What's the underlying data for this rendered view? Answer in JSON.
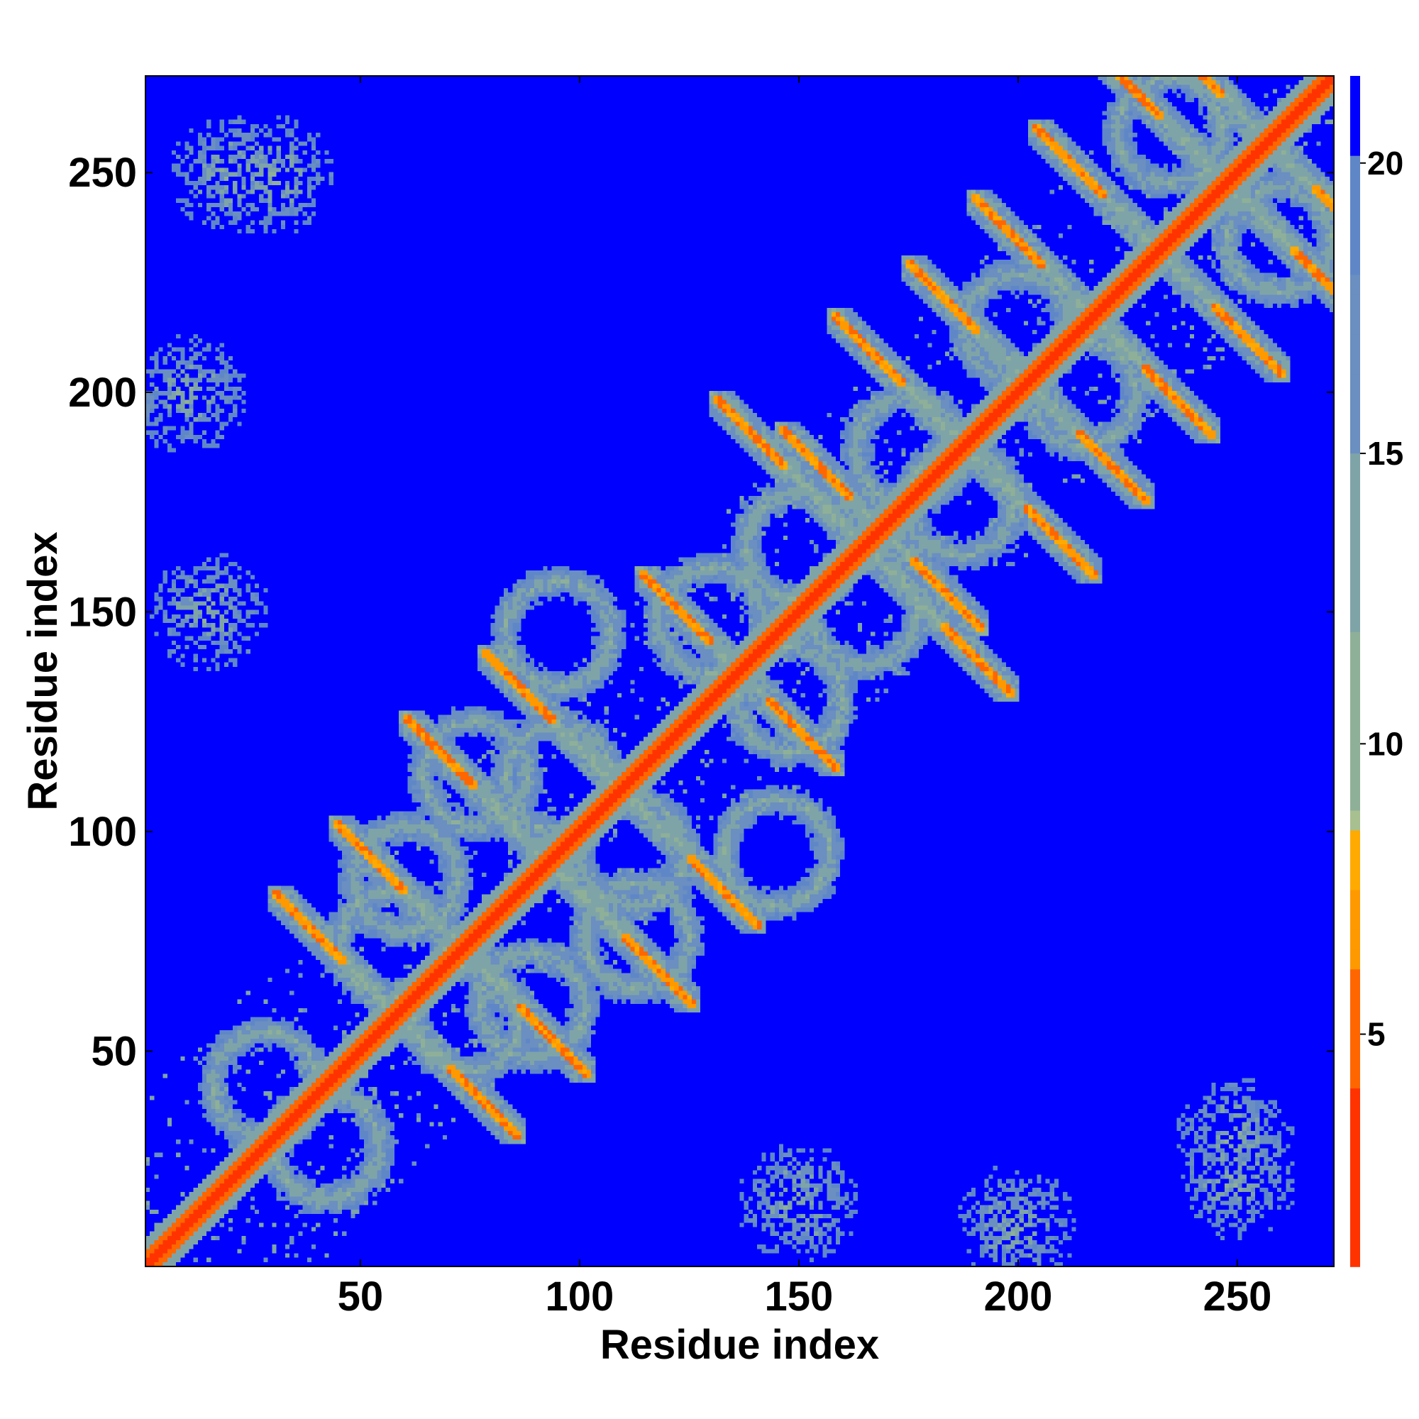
{
  "chart_data": {
    "type": "heatmap",
    "title": "",
    "xlabel": "Residue index",
    "ylabel": "Residue index",
    "xlim": [
      1,
      272
    ],
    "ylim": [
      1,
      272
    ],
    "x_ticks": [
      50,
      100,
      150,
      200,
      250
    ],
    "y_ticks": [
      50,
      100,
      150,
      200,
      250
    ],
    "colorbar": {
      "range": [
        1,
        21.5
      ],
      "ticks": [
        5,
        10,
        15,
        20
      ],
      "color_stops": [
        {
          "value": 1,
          "color": "#ff0000"
        },
        {
          "value": 4,
          "color": "#ff3300"
        },
        {
          "value": 6,
          "color": "#ff6600"
        },
        {
          "value": 7.5,
          "color": "#ff9900"
        },
        {
          "value": 8.5,
          "color": "#ffaa00"
        },
        {
          "value": 9,
          "color": "#a8c090"
        },
        {
          "value": 12,
          "color": "#8fb098"
        },
        {
          "value": 15,
          "color": "#7fa4a8"
        },
        {
          "value": 18,
          "color": "#6a8fc0"
        },
        {
          "value": 20,
          "color": "#5f87c8"
        },
        {
          "value": 20.2,
          "color": "#0000ff"
        }
      ]
    },
    "background_value": 21,
    "description_contacts": {
      "diagonal_width": 2,
      "helix_pairs": [
        [
          44,
          72
        ],
        [
          58,
          88
        ],
        [
          74,
          112
        ],
        [
          92,
          127
        ],
        [
          128,
          145
        ],
        [
          145,
          185
        ],
        [
          160,
          178
        ],
        [
          172,
          204
        ],
        [
          189,
          216
        ],
        [
          204,
          231
        ],
        [
          218,
          247
        ],
        [
          231,
          265
        ],
        [
          245,
          270
        ]
      ],
      "sheet_crossings": [
        [
          42,
          28
        ],
        [
          57,
          74
        ],
        [
          60,
          89
        ],
        [
          76,
          113
        ],
        [
          95,
          145
        ],
        [
          112,
          95
        ],
        [
          148,
          130
        ],
        [
          165,
          150
        ],
        [
          187,
          175
        ],
        [
          200,
          215
        ],
        [
          235,
          260
        ]
      ],
      "corner_contacts": [
        [
          20,
          250
        ],
        [
          10,
          200
        ],
        [
          15,
          150
        ],
        [
          250,
          30
        ],
        [
          200,
          10
        ]
      ]
    }
  }
}
